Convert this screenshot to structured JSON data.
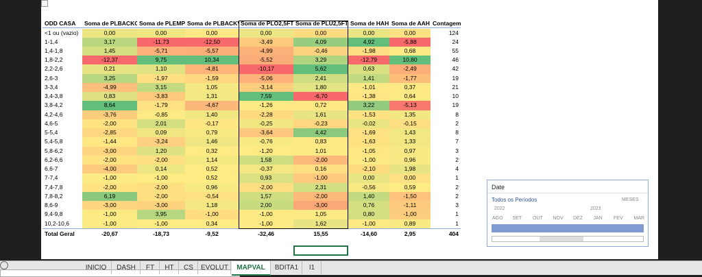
{
  "table": {
    "headers": [
      "ODD CASA",
      "Soma de PLBACKC",
      "Soma de PLEMP",
      "Soma de PLBACKV",
      "Soma de PLO2,5FT",
      "Soma de PLU2,5FT",
      "Soma de HAH",
      "Soma de AAH",
      "Contagem"
    ],
    "rows": [
      [
        "<1 ou (vazio)",
        "0,00",
        "0,00",
        "0,00",
        "0,00",
        "0,00",
        "0,00",
        "0,00",
        "124"
      ],
      [
        "1-1,4",
        "3,17",
        "-11,73",
        "-12,50",
        "-3,49",
        "4,09",
        "4,92",
        "-5,88",
        "24"
      ],
      [
        "1,4-1,8",
        "1,45",
        "-5,71",
        "-5,57",
        "-4,99",
        "-0,46",
        "-1,98",
        "0,68",
        "55"
      ],
      [
        "1,8-2,2",
        "-12,37",
        "9,75",
        "10,34",
        "-5,52",
        "3,29",
        "-12,79",
        "10,80",
        "46"
      ],
      [
        "2,2-2,6",
        "0,21",
        "1,10",
        "-4,81",
        "-10,17",
        "5,62",
        "0,63",
        "-2,49",
        "42"
      ],
      [
        "2,6-3",
        "3,25",
        "-1,97",
        "-1,59",
        "-5,06",
        "2,41",
        "1,41",
        "-1,77",
        "19"
      ],
      [
        "3-3,4",
        "-4,99",
        "3,15",
        "1,05",
        "-3,14",
        "1,80",
        "-1,01",
        "0,37",
        "21"
      ],
      [
        "3,4-3,8",
        "0,83",
        "-3,83",
        "1,31",
        "7,59",
        "-6,70",
        "-1,38",
        "0,64",
        "10"
      ],
      [
        "3,8-4,2",
        "8,64",
        "-1,79",
        "-4,67",
        "-1,26",
        "0,72",
        "3,22",
        "-5,13",
        "19"
      ],
      [
        "4,2-4,6",
        "-3,76",
        "-0,85",
        "1,40",
        "-2,28",
        "1,61",
        "-1,53",
        "1,35",
        "8"
      ],
      [
        "4,6-5",
        "-2,00",
        "2,01",
        "-0,17",
        "-0,25",
        "-0,23",
        "-0,02",
        "-0,15",
        "2"
      ],
      [
        "5-5,4",
        "-2,85",
        "0,09",
        "0,79",
        "-3,64",
        "4,42",
        "-1,69",
        "1,43",
        "8"
      ],
      [
        "5,4-5,8",
        "-1,44",
        "-3,24",
        "1,46",
        "-0,76",
        "0,83",
        "-1,63",
        "1,33",
        "7"
      ],
      [
        "5,8-6,2",
        "-3,00",
        "1,20",
        "0,32",
        "-1,20",
        "1,01",
        "-1,05",
        "0,97",
        "3"
      ],
      [
        "6,2-6,6",
        "-2,00",
        "-2,00",
        "1,14",
        "1,58",
        "-2,00",
        "-1,00",
        "0,96",
        "2"
      ],
      [
        "6,6-7",
        "-4,00",
        "0,14",
        "0,52",
        "-0,37",
        "0,16",
        "-2,10",
        "1,98",
        "4"
      ],
      [
        "7-7,4",
        "-1,00",
        "-1,00",
        "0,52",
        "0,93",
        "-1,00",
        "0,00",
        "0,00",
        "1"
      ],
      [
        "7,4-7,8",
        "-2,00",
        "-2,00",
        "0,96",
        "-2,00",
        "2,31",
        "-0,56",
        "0,59",
        "2"
      ],
      [
        "7,8-8,2",
        "6,19",
        "-2,00",
        "-0,54",
        "1,57",
        "-2,00",
        "1,40",
        "-1,50",
        "2"
      ],
      [
        "8,6-9",
        "-3,00",
        "-3,00",
        "1,18",
        "2,00",
        "-3,00",
        "0,76",
        "-1,11",
        "3"
      ],
      [
        "9,4-9,8",
        "-1,00",
        "3,95",
        "-1,00",
        "-1,00",
        "1,05",
        "0,80",
        "-1,00",
        "1"
      ],
      [
        "10,2-10,6",
        "-1,00",
        "-1,00",
        "0,34",
        "-1,00",
        "1,62",
        "-1,00",
        "0,89",
        "1"
      ]
    ],
    "total": [
      "Total Geral",
      "-20,67",
      "-18,73",
      "-9,52",
      "-32,46",
      "15,55",
      "-14,60",
      "2,95",
      "404"
    ]
  },
  "slicer": {
    "title": "Date",
    "period": "Todos os Períodos",
    "level": "MESES",
    "years": [
      "2022",
      "2023"
    ],
    "months": [
      "AGO",
      "SET",
      "OUT",
      "NOV",
      "DEZ",
      "JAN",
      "FEV",
      "MAR"
    ]
  },
  "tabs": [
    "INICIO",
    "DASH",
    "FT",
    "HT",
    "CS",
    "EVOLUT",
    "MAPVAL",
    "BDITA1",
    "I1"
  ],
  "active_tab": "MAPVAL"
}
